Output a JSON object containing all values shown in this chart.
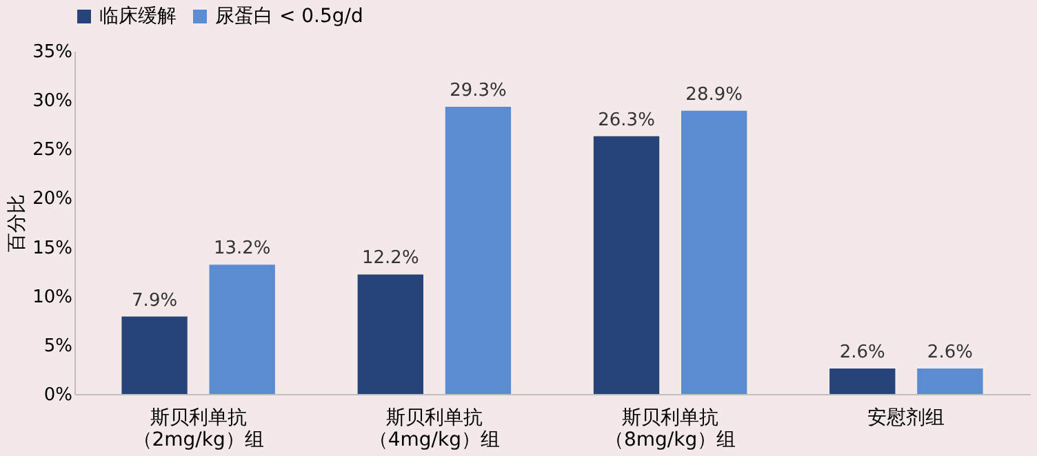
{
  "chart_data": {
    "type": "bar",
    "ylabel": "百分比",
    "categories": [
      "斯贝利单抗（2mg/kg）组",
      "斯贝利单抗（4mg/kg）组",
      "斯贝利单抗（8mg/kg）组",
      "安慰剂组"
    ],
    "series": [
      {
        "name": "临床缓解",
        "color": "#264478",
        "values": [
          7.9,
          12.2,
          26.3,
          2.6
        ],
        "value_labels": [
          "7.9%",
          "12.2%",
          "26.3%",
          "2.6%"
        ]
      },
      {
        "name": "尿蛋白 < 0.5g/d",
        "color": "#5b8bd0",
        "values": [
          13.2,
          29.3,
          28.9,
          2.6
        ],
        "value_labels": [
          "13.2%",
          "29.3%",
          "28.9%",
          "2.6%"
        ]
      }
    ],
    "ylim": [
      0,
      35
    ],
    "yticks": [
      {
        "value": 0,
        "label": "0%"
      },
      {
        "value": 5,
        "label": "5%"
      },
      {
        "value": 10,
        "label": "10%"
      },
      {
        "value": 15,
        "label": "15%"
      },
      {
        "value": 20,
        "label": "20%"
      },
      {
        "value": 25,
        "label": "25%"
      },
      {
        "value": 30,
        "label": "30%"
      },
      {
        "value": 35,
        "label": "35%"
      }
    ],
    "grid": false,
    "legend": "top"
  }
}
